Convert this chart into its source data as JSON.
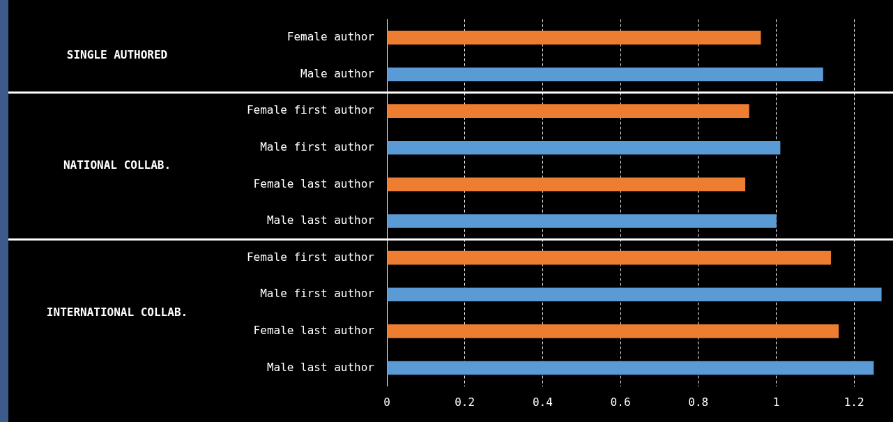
{
  "chart_data": {
    "type": "bar",
    "orientation": "horizontal",
    "categories": [
      "Female author",
      "Male author",
      "Female first author",
      "Male first author",
      "Female last author",
      "Male last author",
      "Female first author",
      "Male first author",
      "Female last author",
      "Male last author"
    ],
    "values": [
      0.96,
      1.12,
      0.93,
      1.01,
      0.92,
      1.0,
      1.14,
      1.27,
      1.16,
      1.25
    ],
    "colors": [
      "#ed7d31",
      "#5b9bd5",
      "#ed7d31",
      "#5b9bd5",
      "#ed7d31",
      "#5b9bd5",
      "#ed7d31",
      "#5b9bd5",
      "#ed7d31",
      "#5b9bd5"
    ],
    "xlim": [
      0,
      1.3
    ],
    "xticks": [
      0,
      0.2,
      0.4,
      0.6,
      0.8,
      1,
      1.2
    ],
    "grid": "x",
    "annotations": [
      "SINGLE AUTHORED",
      "NATIONAL COLLAB.",
      "INTERNATIONAL COLLAB."
    ]
  }
}
